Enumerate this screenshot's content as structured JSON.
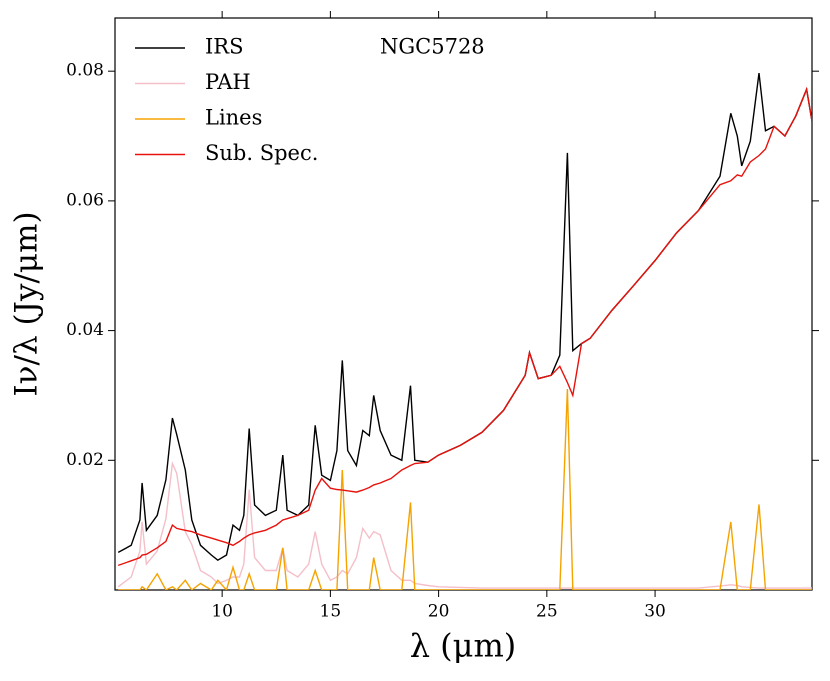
{
  "chart_data": {
    "type": "line",
    "annotation": "NGC5728",
    "xlabel": "λ (μm)",
    "ylabel": "Iν/λ (Jy/μm)",
    "legend": "upper left",
    "xlim": [
      5.05,
      37.25
    ],
    "ylim": [
      0,
      0.0882
    ],
    "xticks": [
      10,
      15,
      20,
      25,
      30
    ],
    "yticks": [
      0.02,
      0.04,
      0.06,
      0.08
    ],
    "x": [
      5.2,
      5.8,
      6.2,
      6.3,
      6.5,
      7.0,
      7.4,
      7.7,
      7.9,
      8.3,
      8.6,
      9.0,
      9.5,
      9.8,
      10.2,
      10.5,
      10.8,
      11.0,
      11.25,
      11.5,
      12.0,
      12.5,
      12.8,
      13.0,
      13.5,
      14.0,
      14.3,
      14.6,
      15.0,
      15.3,
      15.55,
      15.8,
      16.2,
      16.5,
      16.8,
      17.0,
      17.3,
      17.8,
      18.3,
      18.7,
      18.9,
      19.5,
      20,
      21,
      22,
      23,
      24,
      24.2,
      24.6,
      25.2,
      25.6,
      25.95,
      26.2,
      26.6,
      27,
      28,
      29,
      30,
      31,
      32,
      33,
      33.5,
      33.8,
      34.0,
      34.4,
      34.8,
      35.1,
      35.5,
      36,
      36.5,
      37,
      37.25
    ],
    "series": [
      {
        "name": "IRS",
        "color": "#000000",
        "values": [
          0.0058,
          0.0069,
          0.0108,
          0.0165,
          0.0092,
          0.0115,
          0.017,
          0.0265,
          0.024,
          0.0185,
          0.0108,
          0.0069,
          0.0054,
          0.0046,
          0.0054,
          0.01,
          0.0092,
          0.0115,
          0.0249,
          0.0131,
          0.0115,
          0.0123,
          0.0208,
          0.0123,
          0.0115,
          0.0131,
          0.0254,
          0.0177,
          0.0169,
          0.0215,
          0.0354,
          0.0215,
          0.0192,
          0.0246,
          0.0238,
          0.03,
          0.0246,
          0.0208,
          0.02,
          0.0315,
          0.02,
          0.0197,
          0.0208,
          0.0223,
          0.0243,
          0.0277,
          0.0331,
          0.0366,
          0.0326,
          0.0331,
          0.0362,
          0.0674,
          0.0369,
          0.038,
          0.0388,
          0.0431,
          0.0469,
          0.0508,
          0.0551,
          0.0585,
          0.0638,
          0.0735,
          0.07,
          0.0654,
          0.0692,
          0.0797,
          0.0708,
          0.0715,
          0.07,
          0.0731,
          0.0772,
          0.0723
        ]
      },
      {
        "name": "PAH",
        "color": "#f4bfc9",
        "values": [
          0.0005,
          0.002,
          0.006,
          0.0105,
          0.004,
          0.006,
          0.011,
          0.0195,
          0.018,
          0.009,
          0.007,
          0.003,
          0.002,
          0.001,
          0.0015,
          0.002,
          0.002,
          0.004,
          0.0155,
          0.005,
          0.003,
          0.003,
          0.0065,
          0.003,
          0.002,
          0.004,
          0.009,
          0.004,
          0.0015,
          0.002,
          0.003,
          0.0025,
          0.005,
          0.0095,
          0.008,
          0.009,
          0.0085,
          0.003,
          0.0015,
          0.0015,
          0.001,
          0.0007,
          0.0005,
          0.0004,
          0.0003,
          0.0003,
          0.0003,
          0.0003,
          0.0003,
          0.0003,
          0.0003,
          0.0003,
          0.0003,
          0.0003,
          0.0003,
          0.0003,
          0.0003,
          0.0003,
          0.0003,
          0.0003,
          0.0006,
          0.0008,
          0.0007,
          0.0005,
          0.0004,
          0.0003,
          0.0003,
          0.0003,
          0.0003,
          0.0003,
          0.0003,
          0.0003
        ]
      },
      {
        "name": "Lines",
        "color": "#f5a300",
        "values": [
          0,
          0,
          0,
          0.0005,
          0,
          0.0025,
          0,
          0.0005,
          0,
          0.0015,
          0,
          0.001,
          0,
          0.0015,
          0,
          0.0035,
          0,
          0,
          0.0025,
          0,
          0,
          0,
          0.0065,
          0,
          0,
          0,
          0.003,
          0,
          0,
          0,
          0.0185,
          0,
          0,
          0,
          0,
          0.005,
          0,
          0,
          0,
          0.0135,
          0,
          0,
          0,
          0,
          0,
          0,
          0,
          0,
          0,
          0,
          0,
          0.031,
          0,
          0,
          0,
          0,
          0,
          0,
          0,
          0,
          0,
          0.0105,
          0,
          0,
          0,
          0.0132,
          0,
          0,
          0,
          0,
          0,
          0
        ]
      },
      {
        "name": "Sub. Spec.",
        "color": "#e8120c",
        "values": [
          0.0038,
          0.0045,
          0.005,
          0.0054,
          0.0055,
          0.0065,
          0.0075,
          0.01,
          0.0095,
          0.0092,
          0.009,
          0.0085,
          0.008,
          0.0077,
          0.0073,
          0.0069,
          0.0075,
          0.008,
          0.0085,
          0.0088,
          0.0092,
          0.01,
          0.0108,
          0.011,
          0.0115,
          0.0123,
          0.0154,
          0.0172,
          0.0157,
          0.0155,
          0.0154,
          0.0153,
          0.0151,
          0.0154,
          0.0158,
          0.0162,
          0.0165,
          0.0172,
          0.0185,
          0.0192,
          0.0195,
          0.0197,
          0.0208,
          0.0223,
          0.0243,
          0.0277,
          0.0331,
          0.0366,
          0.0326,
          0.0331,
          0.0345,
          0.032,
          0.03,
          0.038,
          0.0388,
          0.0431,
          0.0469,
          0.0508,
          0.0551,
          0.0585,
          0.0625,
          0.0631,
          0.064,
          0.0638,
          0.066,
          0.067,
          0.068,
          0.0715,
          0.07,
          0.0731,
          0.0772,
          0.0723
        ]
      }
    ]
  }
}
